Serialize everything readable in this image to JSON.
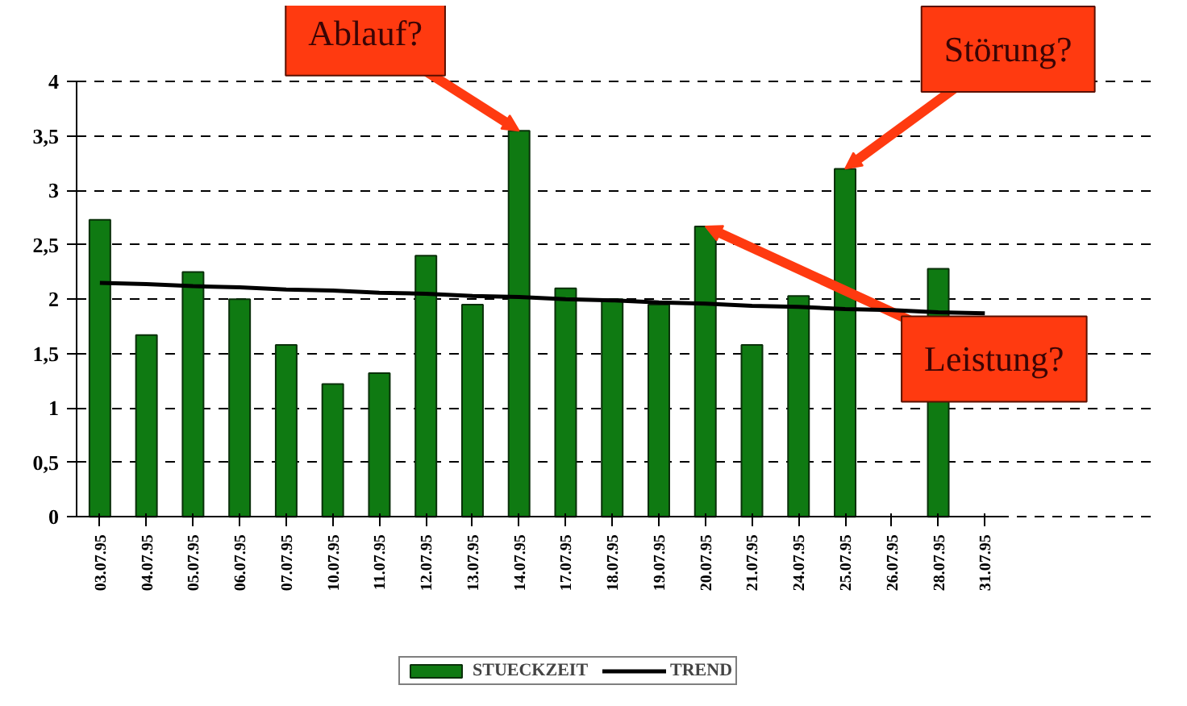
{
  "chart_data": {
    "type": "bar",
    "categories": [
      "03.07.95",
      "04.07.95",
      "05.07.95",
      "06.07.95",
      "07.07.95",
      "10.07.95",
      "11.07.95",
      "12.07.95",
      "13.07.95",
      "14.07.95",
      "17.07.95",
      "18.07.95",
      "19.07.95",
      "20.07.95",
      "21.07.95",
      "24.07.95",
      "25.07.95",
      "26.07.95",
      "28.07.95",
      "31.07.95"
    ],
    "series": [
      {
        "name": "STUECKZEIT",
        "color": "#0f7a12",
        "values": [
          2.73,
          1.67,
          2.25,
          2.0,
          1.58,
          1.22,
          1.32,
          2.4,
          1.95,
          3.55,
          2.1,
          2.0,
          1.95,
          2.67,
          1.58,
          2.03,
          3.2,
          null,
          2.28,
          null
        ]
      },
      {
        "name": "TREND",
        "type": "line",
        "color": "#000000",
        "values": [
          2.15,
          2.14,
          2.12,
          2.11,
          2.09,
          2.08,
          2.06,
          2.05,
          2.03,
          2.02,
          2.0,
          1.99,
          1.97,
          1.96,
          1.94,
          1.93,
          1.91,
          1.9,
          1.88,
          1.87
        ]
      }
    ],
    "ylim": [
      0,
      4
    ],
    "yticks": [
      0,
      {
        "value": 0.5,
        "label": "0,5"
      },
      1,
      {
        "value": 1.5,
        "label": "1,5"
      },
      2,
      {
        "value": 2.5,
        "label": "2,5"
      },
      3,
      {
        "value": 3.5,
        "label": "3,5"
      },
      4
    ],
    "grid": "y",
    "legend": "bottom",
    "line_style": "solid",
    "annotations": [
      {
        "text": "Ablauf?",
        "x": "14.07.95",
        "y": 3.55
      },
      {
        "text": "Störung?",
        "x": "25.07.95",
        "y": 3.2
      },
      {
        "text": "Leistung?",
        "x": "20.07.95",
        "y": 2.67
      }
    ]
  }
}
